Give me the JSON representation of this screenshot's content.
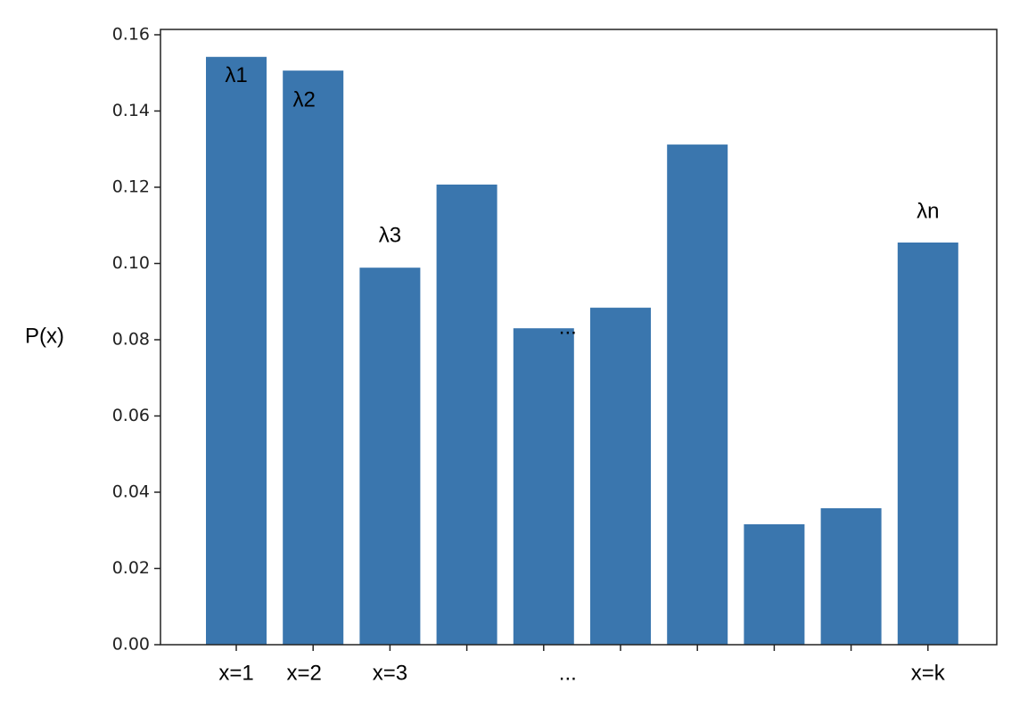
{
  "chart_data": {
    "type": "bar",
    "y_label": "P(x)",
    "categories": [
      "x=1",
      "x=2",
      "x=3",
      null,
      "...",
      null,
      null,
      null,
      null,
      "x=k"
    ],
    "values": [
      0.1542,
      0.1506,
      0.0989,
      0.1207,
      0.083,
      0.0884,
      0.1312,
      0.0316,
      0.0358,
      0.1055
    ],
    "bar_labels": [
      "λ1",
      "λ2",
      "λ3",
      null,
      "...",
      null,
      null,
      null,
      null,
      "λn"
    ],
    "color": "#3a76ae",
    "ylim": [
      0,
      0.1614
    ],
    "yticks": [
      {
        "value": 0,
        "label": "0.00"
      },
      {
        "value": 0.02,
        "label": "0.02"
      },
      {
        "value": 0.04,
        "label": "0.04"
      },
      {
        "value": 0.06,
        "label": "0.06"
      },
      {
        "value": 0.08,
        "label": "0.08"
      },
      {
        "value": 0.1,
        "label": "0.10"
      },
      {
        "value": 0.12,
        "label": "0.12"
      },
      {
        "value": 0.14,
        "label": "0.14"
      },
      {
        "value": 0.16,
        "label": "0.16"
      }
    ]
  }
}
